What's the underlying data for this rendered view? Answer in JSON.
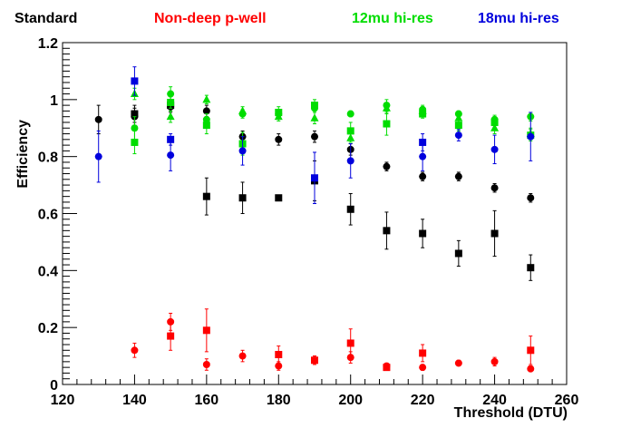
{
  "chart_data": {
    "type": "scatter",
    "title": "",
    "xlabel": "Threshold (DTU)",
    "ylabel": "Efficiency",
    "xlim": [
      120,
      260
    ],
    "ylim": [
      0,
      1.2
    ],
    "x_ticks": [
      "120",
      "140",
      "160",
      "180",
      "200",
      "220",
      "240",
      "260"
    ],
    "y_ticks": [
      "0",
      "0.2",
      "0.4",
      "0.6",
      "0.8",
      "1",
      "1.2"
    ],
    "grid": false,
    "legend_position": "top",
    "legend": [
      {
        "label": "Standard",
        "color": "#000000"
      },
      {
        "label": "Non-deep p-well",
        "color": "#ff0000"
      },
      {
        "label": "12mu hi-res",
        "color": "#00dd00"
      },
      {
        "label": "18mu hi-res",
        "color": "#0000dd"
      }
    ],
    "series": [
      {
        "group": "Standard",
        "marker": "circle",
        "color": "#000000",
        "points": [
          {
            "x": 130,
            "y": 0.93,
            "err": 0.05
          },
          {
            "x": 140,
            "y": 0.94,
            "err": 0.03
          },
          {
            "x": 150,
            "y": 0.975,
            "err": 0.02
          },
          {
            "x": 160,
            "y": 0.96,
            "err": 0.02
          },
          {
            "x": 170,
            "y": 0.87,
            "err": 0.02
          },
          {
            "x": 180,
            "y": 0.86,
            "err": 0.02
          },
          {
            "x": 190,
            "y": 0.87,
            "err": 0.02
          },
          {
            "x": 200,
            "y": 0.825,
            "err": 0.02
          },
          {
            "x": 210,
            "y": 0.765,
            "err": 0.015
          },
          {
            "x": 220,
            "y": 0.73,
            "err": 0.015
          },
          {
            "x": 230,
            "y": 0.73,
            "err": 0.015
          },
          {
            "x": 240,
            "y": 0.69,
            "err": 0.015
          },
          {
            "x": 250,
            "y": 0.655,
            "err": 0.015
          }
        ]
      },
      {
        "group": "Standard",
        "marker": "square",
        "color": "#000000",
        "points": [
          {
            "x": 140,
            "y": 0.95,
            "err": 0.03
          },
          {
            "x": 150,
            "y": 0.98,
            "err": 0.02
          },
          {
            "x": 160,
            "y": 0.66,
            "err": 0.065
          },
          {
            "x": 170,
            "y": 0.655,
            "err": 0.055
          },
          {
            "x": 180,
            "y": 0.655,
            "err": 0.01
          },
          {
            "x": 190,
            "y": 0.715,
            "err": 0.07
          },
          {
            "x": 200,
            "y": 0.615,
            "err": 0.055
          },
          {
            "x": 210,
            "y": 0.54,
            "err": 0.065
          },
          {
            "x": 220,
            "y": 0.53,
            "err": 0.05
          },
          {
            "x": 230,
            "y": 0.46,
            "err": 0.045
          },
          {
            "x": 240,
            "y": 0.53,
            "err": 0.08
          },
          {
            "x": 250,
            "y": 0.41,
            "err": 0.045
          }
        ]
      },
      {
        "group": "Non-deep p-well",
        "marker": "circle",
        "color": "#ff0000",
        "points": [
          {
            "x": 140,
            "y": 0.12,
            "err": 0.025
          },
          {
            "x": 150,
            "y": 0.22,
            "err": 0.03
          },
          {
            "x": 160,
            "y": 0.07,
            "err": 0.02
          },
          {
            "x": 170,
            "y": 0.1,
            "err": 0.02
          },
          {
            "x": 180,
            "y": 0.065,
            "err": 0.015
          },
          {
            "x": 190,
            "y": 0.085,
            "err": 0.015
          },
          {
            "x": 200,
            "y": 0.095,
            "err": 0.02
          },
          {
            "x": 210,
            "y": 0.065,
            "err": 0.01
          },
          {
            "x": 220,
            "y": 0.06,
            "err": 0.01
          },
          {
            "x": 230,
            "y": 0.075,
            "err": 0.01
          },
          {
            "x": 240,
            "y": 0.08,
            "err": 0.015
          },
          {
            "x": 250,
            "y": 0.055,
            "err": 0.01
          }
        ]
      },
      {
        "group": "Non-deep p-well",
        "marker": "square",
        "color": "#ff0000",
        "points": [
          {
            "x": 150,
            "y": 0.17,
            "err": 0.05
          },
          {
            "x": 160,
            "y": 0.19,
            "err": 0.075
          },
          {
            "x": 180,
            "y": 0.105,
            "err": 0.03
          },
          {
            "x": 190,
            "y": 0.085,
            "err": 0.015
          },
          {
            "x": 200,
            "y": 0.145,
            "err": 0.05
          },
          {
            "x": 210,
            "y": 0.06,
            "err": 0.01
          },
          {
            "x": 220,
            "y": 0.11,
            "err": 0.03
          },
          {
            "x": 250,
            "y": 0.12,
            "err": 0.05
          }
        ]
      },
      {
        "group": "12mu hi-res",
        "marker": "circle",
        "color": "#00dd00",
        "points": [
          {
            "x": 140,
            "y": 0.9,
            "err": 0.04
          },
          {
            "x": 150,
            "y": 1.02,
            "err": 0.025
          },
          {
            "x": 160,
            "y": 0.93,
            "err": 0.02
          },
          {
            "x": 170,
            "y": 0.95,
            "err": 0.015
          },
          {
            "x": 180,
            "y": 0.95,
            "err": 0.015
          },
          {
            "x": 190,
            "y": 0.97,
            "err": 0.015
          },
          {
            "x": 200,
            "y": 0.95,
            "err": 0.01
          },
          {
            "x": 210,
            "y": 0.98,
            "err": 0.02
          },
          {
            "x": 220,
            "y": 0.965,
            "err": 0.015
          },
          {
            "x": 230,
            "y": 0.95,
            "err": 0.01
          },
          {
            "x": 240,
            "y": 0.93,
            "err": 0.015
          },
          {
            "x": 250,
            "y": 0.94,
            "err": 0.015
          }
        ]
      },
      {
        "group": "12mu hi-res",
        "marker": "square",
        "color": "#00dd00",
        "points": [
          {
            "x": 140,
            "y": 0.85,
            "err": 0.04
          },
          {
            "x": 150,
            "y": 0.99,
            "err": 0.02
          },
          {
            "x": 160,
            "y": 0.91,
            "err": 0.03
          },
          {
            "x": 170,
            "y": 0.845,
            "err": 0.04
          },
          {
            "x": 180,
            "y": 0.955,
            "err": 0.02
          },
          {
            "x": 190,
            "y": 0.98,
            "err": 0.02
          },
          {
            "x": 200,
            "y": 0.89,
            "err": 0.03
          },
          {
            "x": 210,
            "y": 0.915,
            "err": 0.04
          },
          {
            "x": 220,
            "y": 0.95,
            "err": 0.015
          },
          {
            "x": 230,
            "y": 0.91,
            "err": 0.02
          },
          {
            "x": 240,
            "y": 0.92,
            "err": 0.02
          },
          {
            "x": 250,
            "y": 0.875,
            "err": 0.02
          }
        ]
      },
      {
        "group": "12mu hi-res",
        "marker": "triangle",
        "color": "#00dd00",
        "points": [
          {
            "x": 140,
            "y": 1.02,
            "err": 0.02
          },
          {
            "x": 150,
            "y": 0.94,
            "err": 0.02
          },
          {
            "x": 160,
            "y": 1.0,
            "err": 0.015
          },
          {
            "x": 170,
            "y": 0.96,
            "err": 0.015
          },
          {
            "x": 180,
            "y": 0.94,
            "err": 0.015
          },
          {
            "x": 190,
            "y": 0.935,
            "err": 0.02
          },
          {
            "x": 200,
            "y": 0.865,
            "err": 0.015
          },
          {
            "x": 210,
            "y": 0.97,
            "err": 0.02
          },
          {
            "x": 220,
            "y": 0.96,
            "err": 0.015
          },
          {
            "x": 230,
            "y": 0.935,
            "err": 0.015
          },
          {
            "x": 240,
            "y": 0.9,
            "err": 0.02
          },
          {
            "x": 250,
            "y": 0.88,
            "err": 0.02
          }
        ]
      },
      {
        "group": "18mu hi-res",
        "marker": "circle",
        "color": "#0000dd",
        "points": [
          {
            "x": 130,
            "y": 0.8,
            "err": 0.09
          },
          {
            "x": 150,
            "y": 0.805,
            "err": 0.055
          },
          {
            "x": 170,
            "y": 0.82,
            "err": 0.05
          },
          {
            "x": 200,
            "y": 0.785,
            "err": 0.06
          },
          {
            "x": 220,
            "y": 0.8,
            "err": 0.05
          },
          {
            "x": 230,
            "y": 0.875,
            "err": 0.02
          },
          {
            "x": 240,
            "y": 0.825,
            "err": 0.05
          },
          {
            "x": 250,
            "y": 0.87,
            "err": 0.085
          }
        ]
      },
      {
        "group": "18mu hi-res",
        "marker": "square",
        "color": "#0000dd",
        "points": [
          {
            "x": 140,
            "y": 1.065,
            "err": 0.05
          },
          {
            "x": 150,
            "y": 0.86,
            "err": 0.02
          },
          {
            "x": 190,
            "y": 0.725,
            "err": 0.09
          },
          {
            "x": 220,
            "y": 0.85,
            "err": 0.03
          }
        ]
      }
    ]
  }
}
